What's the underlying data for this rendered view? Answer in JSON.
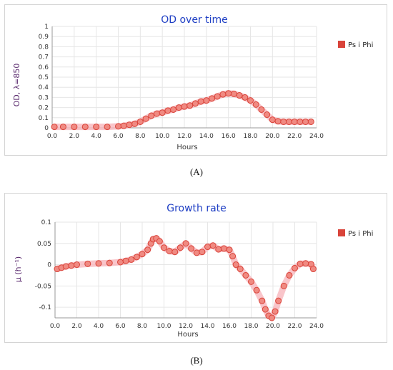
{
  "captions": {
    "a": "(A)",
    "b": "(B)"
  },
  "colors": {
    "marker_fill": "#f08a82",
    "marker_edge": "#d9443a",
    "glow": "#f7b6bd",
    "title": "#1f3fc4",
    "grid": "#e6e6e6"
  },
  "chart_data": [
    {
      "type": "scatter",
      "title": "OD over time",
      "xlabel": "Hours",
      "ylabel": "OD, λ=850",
      "xlim": [
        0,
        24
      ],
      "ylim": [
        0,
        1
      ],
      "xticks": [
        "0.0",
        "2.0",
        "4.0",
        "6.0",
        "8.0",
        "10.0",
        "12.0",
        "14.0",
        "16.0",
        "18.0",
        "20.0",
        "22.0",
        "24.0"
      ],
      "yticks": [
        "0",
        "0.1",
        "0.2",
        "0.3",
        "0.4",
        "0.5",
        "0.6",
        "0.7",
        "0.8",
        "0.9",
        "1"
      ],
      "grid": true,
      "legend_position": "right",
      "series": [
        {
          "name": "Ps i Phi",
          "x": [
            0.2,
            1,
            2,
            3,
            4,
            5,
            6,
            6.5,
            7,
            7.5,
            8,
            8.5,
            9,
            9.5,
            10,
            10.5,
            11,
            11.5,
            12,
            12.5,
            13,
            13.5,
            14,
            14.5,
            15,
            15.5,
            16,
            16.5,
            17,
            17.5,
            18,
            18.5,
            19,
            19.5,
            20,
            20.5,
            21,
            21.5,
            22,
            22.5,
            23,
            23.5
          ],
          "y": [
            0.01,
            0.01,
            0.01,
            0.01,
            0.01,
            0.01,
            0.015,
            0.02,
            0.03,
            0.04,
            0.06,
            0.09,
            0.12,
            0.14,
            0.15,
            0.17,
            0.18,
            0.2,
            0.21,
            0.22,
            0.24,
            0.26,
            0.27,
            0.29,
            0.31,
            0.33,
            0.34,
            0.335,
            0.32,
            0.3,
            0.27,
            0.23,
            0.18,
            0.13,
            0.08,
            0.065,
            0.06,
            0.06,
            0.06,
            0.06,
            0.06,
            0.06
          ]
        }
      ]
    },
    {
      "type": "scatter",
      "title": "Growth rate",
      "xlabel": "Hours",
      "ylabel": "μ (h⁻¹)",
      "xlim": [
        0,
        24
      ],
      "ylim": [
        -0.125,
        0.1
      ],
      "xticks": [
        "0.0",
        "2.0",
        "4.0",
        "6.0",
        "8.0",
        "10.0",
        "12.0",
        "14.0",
        "16.0",
        "18.0",
        "20.0",
        "22.0",
        "24.0"
      ],
      "yticks": [
        "0.1",
        "0.05",
        "0",
        "-0.05",
        "-0.1"
      ],
      "grid": true,
      "legend_position": "right",
      "series": [
        {
          "name": "Ps i Phi",
          "x": [
            0.2,
            0.6,
            1,
            1.5,
            2,
            3,
            4,
            5,
            6,
            6.5,
            7,
            7.5,
            8,
            8.5,
            8.8,
            9,
            9.3,
            9.6,
            10,
            10.5,
            11,
            11.5,
            12,
            12.5,
            13,
            13.5,
            14,
            14.5,
            15,
            15.5,
            16,
            16.3,
            16.6,
            17,
            17.5,
            18,
            18.5,
            19,
            19.3,
            19.6,
            19.9,
            20.2,
            20.5,
            21,
            21.5,
            22,
            22.5,
            23,
            23.5,
            23.7
          ],
          "y": [
            -0.01,
            -0.007,
            -0.004,
            -0.002,
            0,
            0.002,
            0.003,
            0.004,
            0.006,
            0.009,
            0.012,
            0.018,
            0.025,
            0.035,
            0.05,
            0.06,
            0.062,
            0.055,
            0.04,
            0.032,
            0.03,
            0.04,
            0.05,
            0.038,
            0.028,
            0.03,
            0.042,
            0.045,
            0.036,
            0.038,
            0.035,
            0.02,
            0,
            -0.01,
            -0.025,
            -0.04,
            -0.06,
            -0.085,
            -0.105,
            -0.12,
            -0.125,
            -0.11,
            -0.085,
            -0.05,
            -0.025,
            -0.008,
            0.002,
            0.003,
            0.001,
            -0.01
          ]
        }
      ]
    }
  ]
}
